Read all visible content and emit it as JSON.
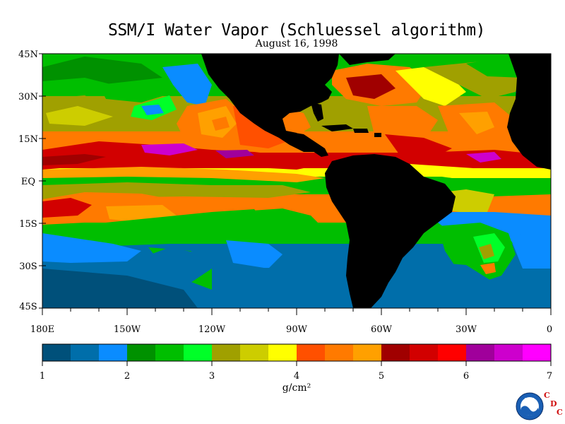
{
  "title": "SSM/I Water Vapor (Schluessel algorithm)",
  "date": "August 16, 1998",
  "lat_labels": [
    "45N",
    "30N",
    "15N",
    "EQ",
    "15S",
    "30S",
    "45S"
  ],
  "lon_labels": [
    "180E",
    "150W",
    "120W",
    "90W",
    "60W",
    "30W",
    "0"
  ],
  "colorbar": {
    "colors": [
      "#00507a",
      "#006eaa",
      "#0a8cff",
      "#009100",
      "#00be00",
      "#00ff28",
      "#a0a000",
      "#cdcd00",
      "#ffff00",
      "#ff5000",
      "#ff7a00",
      "#ffa000",
      "#a00000",
      "#d20000",
      "#ff0000",
      "#a0009b",
      "#cd00cd",
      "#ff00ff"
    ],
    "tick_labels": [
      "1",
      "2",
      "3",
      "4",
      "5",
      "6",
      "7"
    ],
    "unit_label": "g/cm²"
  },
  "logo": {
    "noaa_text": "NOAA",
    "cdc_letters": [
      "C",
      "D",
      "C"
    ]
  }
}
